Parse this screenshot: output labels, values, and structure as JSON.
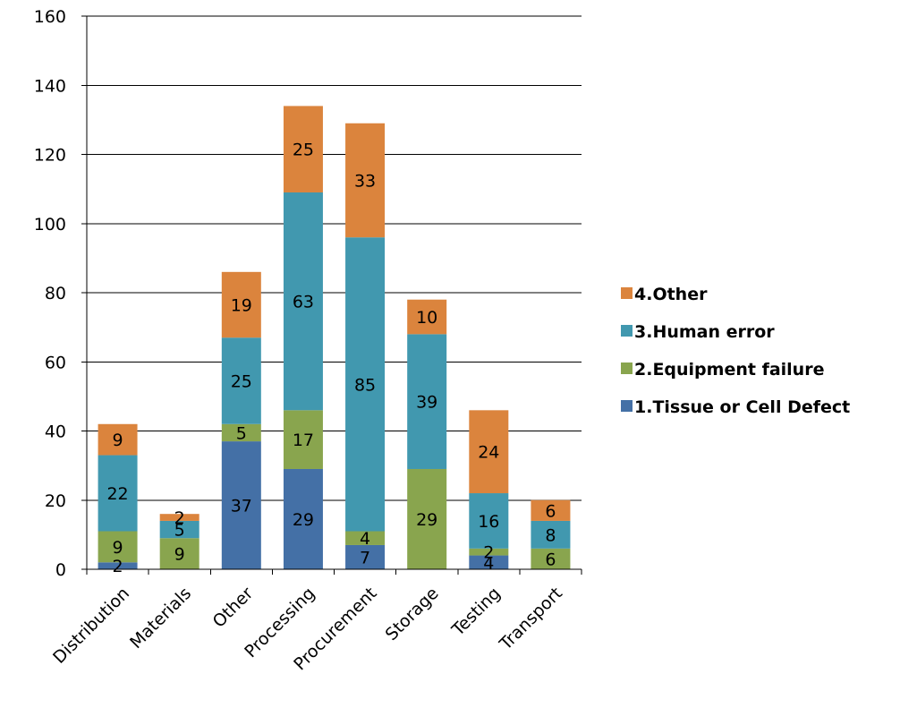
{
  "chart_data": {
    "type": "bar",
    "stacked": true,
    "categories": [
      "Distribution",
      "Materials",
      "Other",
      "Processing",
      "Procurement",
      "Storage",
      "Testing",
      "Transport"
    ],
    "series": [
      {
        "name": "1.Tissue or Cell Defect",
        "color": "#4470a6",
        "values": [
          2,
          0,
          37,
          29,
          7,
          0,
          4,
          0
        ]
      },
      {
        "name": "2.Equipment failure",
        "color": "#89a54e",
        "values": [
          9,
          9,
          5,
          17,
          4,
          29,
          2,
          6
        ]
      },
      {
        "name": "3.Human error",
        "color": "#4198af",
        "values": [
          22,
          5,
          25,
          63,
          85,
          39,
          16,
          8
        ]
      },
      {
        "name": "4.Other",
        "color": "#db843d",
        "values": [
          9,
          2,
          19,
          25,
          33,
          10,
          24,
          6
        ]
      }
    ],
    "ylim": [
      0,
      160
    ],
    "yticks": [
      0,
      20,
      40,
      60,
      80,
      100,
      120,
      140,
      160
    ],
    "grid": true,
    "legend_position": "right",
    "legend_order": "reverse"
  }
}
